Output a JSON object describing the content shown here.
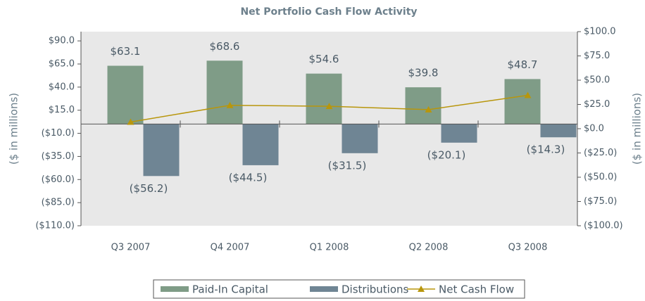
{
  "chart_data": {
    "type": "bar",
    "title": "Net Portfolio Cash Flow Activity",
    "ylabel": "($ in millions)",
    "y2label": "($ in millions)",
    "categories": [
      "Q3 2007",
      "Q4 2007",
      "Q1 2008",
      "Q2 2008",
      "Q3 2008"
    ],
    "series": [
      {
        "name": "Paid-In Capital",
        "type": "bar",
        "color": "#7f9c87",
        "values": [
          63.1,
          68.6,
          54.6,
          39.8,
          48.7
        ],
        "value_labels": [
          "$63.1",
          "$68.6",
          "$54.6",
          "$39.8",
          "$48.7"
        ]
      },
      {
        "name": "Distributions",
        "type": "bar",
        "color": "#6f8594",
        "values": [
          -56.2,
          -44.5,
          -31.5,
          -20.1,
          -14.3
        ],
        "value_labels": [
          "($56.2)",
          "($44.5)",
          "($31.5)",
          "($20.1)",
          "($14.3)"
        ]
      },
      {
        "name": "Net Cash Flow",
        "type": "line",
        "axis": "y2",
        "color": "#b8960c",
        "values": [
          6.9,
          24.1,
          23.1,
          19.7,
          34.4
        ]
      }
    ],
    "ylim": [
      -110,
      100
    ],
    "yticks": [
      {
        "value": 90,
        "label": "$90.0"
      },
      {
        "value": 65,
        "label": "$65.0"
      },
      {
        "value": 40,
        "label": "$40.0"
      },
      {
        "value": 15,
        "label": "$15.0"
      },
      {
        "value": -10,
        "label": "($10.0)"
      },
      {
        "value": -35,
        "label": "($35.0)"
      },
      {
        "value": -60,
        "label": "($60.0)"
      },
      {
        "value": -85,
        "label": "($85.0)"
      },
      {
        "value": -110,
        "label": "($110.0)"
      }
    ],
    "y2lim": [
      -100,
      100
    ],
    "y2ticks": [
      {
        "value": 100,
        "label": "$100.0"
      },
      {
        "value": 75,
        "label": "$75.0"
      },
      {
        "value": 50,
        "label": "$50.0"
      },
      {
        "value": 25,
        "label": "$25.0"
      },
      {
        "value": 0,
        "label": "$0.0"
      },
      {
        "value": -25,
        "label": "($25.0)"
      },
      {
        "value": -50,
        "label": "($50.0)"
      },
      {
        "value": -75,
        "label": "($75.0)"
      },
      {
        "value": -100,
        "label": "($100.0)"
      }
    ],
    "legend": "bottom",
    "plot_background": "#e8e8e8"
  }
}
